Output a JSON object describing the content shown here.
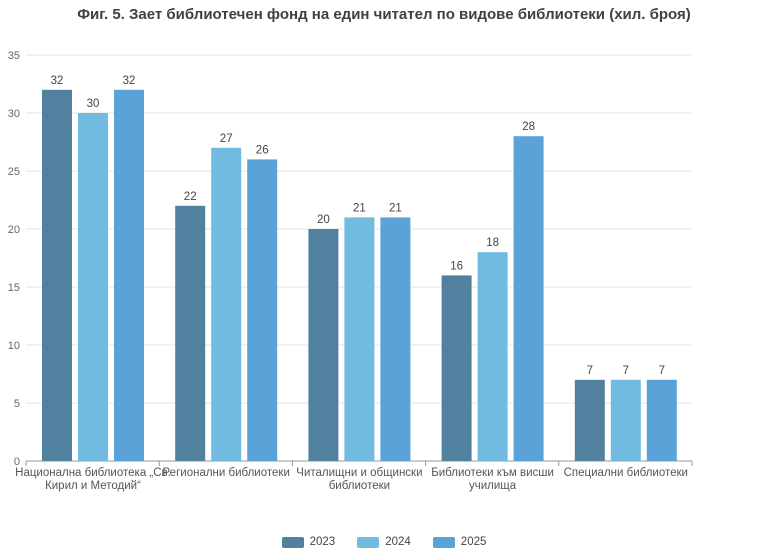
{
  "chart_data": {
    "type": "bar",
    "title": "Фиг. 5. Зает библиотечен фонд на един читател по видове библиотеки (хил. броя)",
    "categories": [
      [
        "Национална библиотека „Св.",
        "Кирил и Методий“"
      ],
      [
        "Регионални библиотеки"
      ],
      [
        "Читалищни и общински",
        "библиотеки"
      ],
      [
        "Библиотеки към висши",
        "училища"
      ],
      [
        "Специални библиотеки"
      ]
    ],
    "series": [
      {
        "name": "2023",
        "color": "#52809f",
        "values": [
          32,
          22,
          20,
          16,
          7
        ]
      },
      {
        "name": "2024",
        "color": "#71bbe0",
        "values": [
          30,
          27,
          21,
          18,
          7
        ]
      },
      {
        "name": "2025",
        "color": "#5aa3d8",
        "values": [
          32,
          26,
          21,
          28,
          7
        ]
      }
    ],
    "ylim": [
      0,
      35
    ],
    "yticks": [
      0,
      5,
      10,
      15,
      20,
      25,
      30,
      35
    ],
    "grid": true,
    "legend_position": "bottom"
  }
}
